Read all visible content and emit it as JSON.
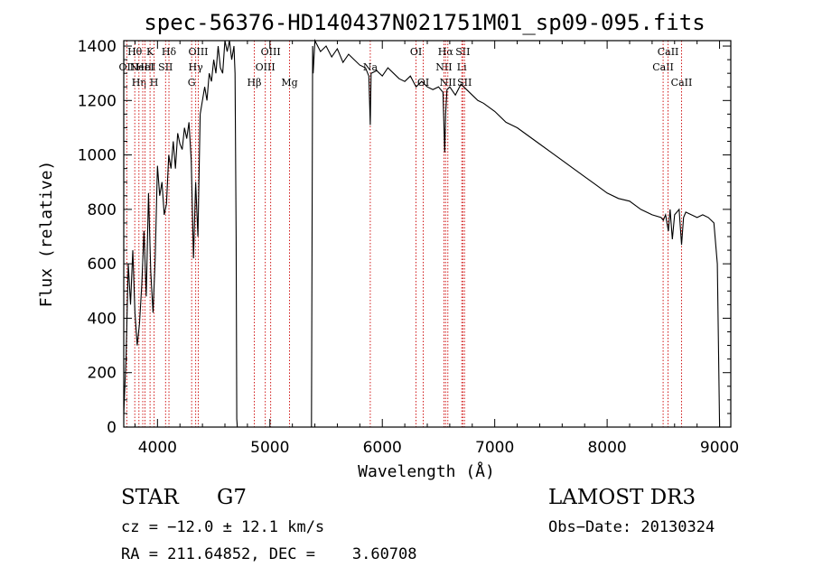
{
  "chart_data": {
    "type": "line",
    "title": "spec-56376-HD140437N021751M01_sp09-095.fits",
    "xlabel": "Wavelength (Å)",
    "ylabel": "Flux (relative)",
    "xlim": [
      3700,
      9100
    ],
    "ylim": [
      0,
      1420
    ],
    "x_ticks": [
      4000,
      5000,
      6000,
      7000,
      8000,
      9000
    ],
    "x_tick_labels": [
      "4000",
      "5000",
      "6000",
      "7000",
      "8000",
      "9000"
    ],
    "y_ticks": [
      0,
      200,
      400,
      600,
      800,
      1000,
      1200,
      1400
    ],
    "y_tick_labels": [
      "0",
      "200",
      "400",
      "600",
      "800",
      "1000",
      "1200",
      "1400"
    ],
    "grid": false,
    "series": [
      {
        "name": "spectrum",
        "color": "#000000",
        "x": [
          3700,
          3720,
          3740,
          3760,
          3780,
          3800,
          3820,
          3840,
          3860,
          3880,
          3900,
          3920,
          3940,
          3960,
          3980,
          4000,
          4020,
          4040,
          4060,
          4080,
          4100,
          4120,
          4140,
          4160,
          4180,
          4200,
          4220,
          4240,
          4260,
          4280,
          4300,
          4320,
          4340,
          4360,
          4380,
          4400,
          4420,
          4440,
          4460,
          4480,
          4500,
          4520,
          4540,
          4560,
          4580,
          4600,
          4620,
          4640,
          4660,
          4680,
          4690,
          4700,
          4705,
          4710,
          5370,
          5380,
          5385,
          5400,
          5450,
          5500,
          5550,
          5600,
          5650,
          5700,
          5750,
          5800,
          5850,
          5880,
          5893,
          5900,
          5950,
          6000,
          6050,
          6100,
          6150,
          6200,
          6250,
          6300,
          6350,
          6400,
          6450,
          6500,
          6540,
          6555,
          6563,
          6575,
          6600,
          6650,
          6700,
          6750,
          6800,
          6850,
          6900,
          7000,
          7100,
          7200,
          7300,
          7400,
          7500,
          7600,
          7700,
          7800,
          7900,
          8000,
          8100,
          8200,
          8300,
          8400,
          8480,
          8500,
          8520,
          8545,
          8560,
          8580,
          8600,
          8640,
          8662,
          8680,
          8700,
          8750,
          8800,
          8850,
          8900,
          8950,
          8980,
          9000
        ],
        "y": [
          50,
          250,
          600,
          450,
          650,
          420,
          300,
          380,
          520,
          720,
          480,
          860,
          570,
          420,
          620,
          960,
          850,
          900,
          780,
          820,
          1000,
          950,
          1050,
          950,
          1080,
          1040,
          1020,
          1100,
          1060,
          1120,
          980,
          620,
          900,
          700,
          1150,
          1200,
          1250,
          1200,
          1300,
          1270,
          1350,
          1300,
          1400,
          1320,
          1300,
          1420,
          1380,
          1420,
          1350,
          1400,
          1300,
          700,
          30,
          0,
          0,
          1400,
          1300,
          1420,
          1380,
          1400,
          1360,
          1390,
          1340,
          1370,
          1350,
          1330,
          1320,
          1290,
          1110,
          1300,
          1310,
          1290,
          1320,
          1300,
          1280,
          1270,
          1290,
          1250,
          1270,
          1250,
          1240,
          1250,
          1230,
          1010,
          1150,
          1240,
          1250,
          1220,
          1260,
          1240,
          1220,
          1200,
          1190,
          1160,
          1120,
          1100,
          1070,
          1040,
          1010,
          980,
          950,
          920,
          890,
          860,
          840,
          830,
          800,
          780,
          770,
          760,
          780,
          720,
          800,
          690,
          780,
          800,
          670,
          770,
          790,
          780,
          770,
          780,
          770,
          750,
          600,
          0
        ]
      }
    ],
    "line_annotations": [
      {
        "x": 3727,
        "label": "OII",
        "row": 2
      },
      {
        "x": 3798,
        "label": "Hθ",
        "row": 1
      },
      {
        "x": 3835,
        "label": "Hη",
        "row": 3
      },
      {
        "x": 3869,
        "label": "NeIII",
        "row": 2
      },
      {
        "x": 3889,
        "label": "HeI",
        "row": 2
      },
      {
        "x": 3934,
        "label": "K",
        "row": 1
      },
      {
        "x": 3970,
        "label": "H",
        "row": 3
      },
      {
        "x": 4072,
        "label": "SII",
        "row": 2
      },
      {
        "x": 4102,
        "label": "Hδ",
        "row": 1
      },
      {
        "x": 4304,
        "label": "G",
        "row": 3
      },
      {
        "x": 4340,
        "label": "Hγ",
        "row": 2
      },
      {
        "x": 4363,
        "label": "OIII",
        "row": 1
      },
      {
        "x": 4861,
        "label": "Hβ",
        "row": 3
      },
      {
        "x": 4959,
        "label": "OIII",
        "row": 2
      },
      {
        "x": 5007,
        "label": "OIII",
        "row": 1
      },
      {
        "x": 5175,
        "label": "Mg",
        "row": 3
      },
      {
        "x": 5893,
        "label": "Na",
        "row": 2
      },
      {
        "x": 6300,
        "label": "OI",
        "row": 1
      },
      {
        "x": 6364,
        "label": "OI",
        "row": 3
      },
      {
        "x": 6548,
        "label": "NII",
        "row": 2
      },
      {
        "x": 6563,
        "label": "Hα",
        "row": 1
      },
      {
        "x": 6583,
        "label": "NII",
        "row": 3
      },
      {
        "x": 6707,
        "label": "Li",
        "row": 2
      },
      {
        "x": 6716,
        "label": "SII",
        "row": 1
      },
      {
        "x": 6731,
        "label": "SII",
        "row": 3
      },
      {
        "x": 8498,
        "label": "CaII",
        "row": 2
      },
      {
        "x": 8542,
        "label": "CaII",
        "row": 1
      },
      {
        "x": 8662,
        "label": "CaII",
        "row": 3
      }
    ],
    "annotation_color": "#cc0000"
  },
  "info": {
    "object_class": "STAR",
    "subclass": "G7",
    "survey": "LAMOST DR3",
    "velocity": "cz = −12.0 ± 12.1 km/s",
    "obs_date": "Obs−Date: 20130324",
    "coords": "RA = 211.64852, DEC =    3.60708"
  }
}
